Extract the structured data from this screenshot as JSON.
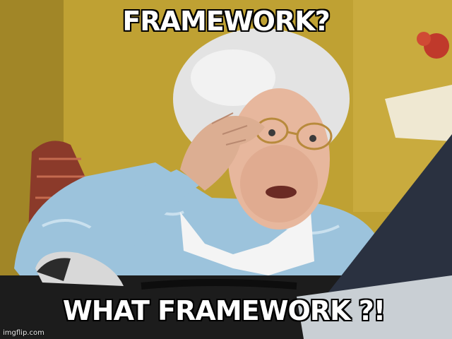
{
  "meme": {
    "top_text": "FRAMEWORK?",
    "bottom_text": "WHAT FRAMEWORK ?!",
    "watermark": "imgflip.com"
  },
  "colors": {
    "wall": "#c7a83a",
    "text": "#ffffff",
    "outline": "#000000",
    "sweater": "#9cc3dc",
    "laptop": "#2a3140"
  }
}
